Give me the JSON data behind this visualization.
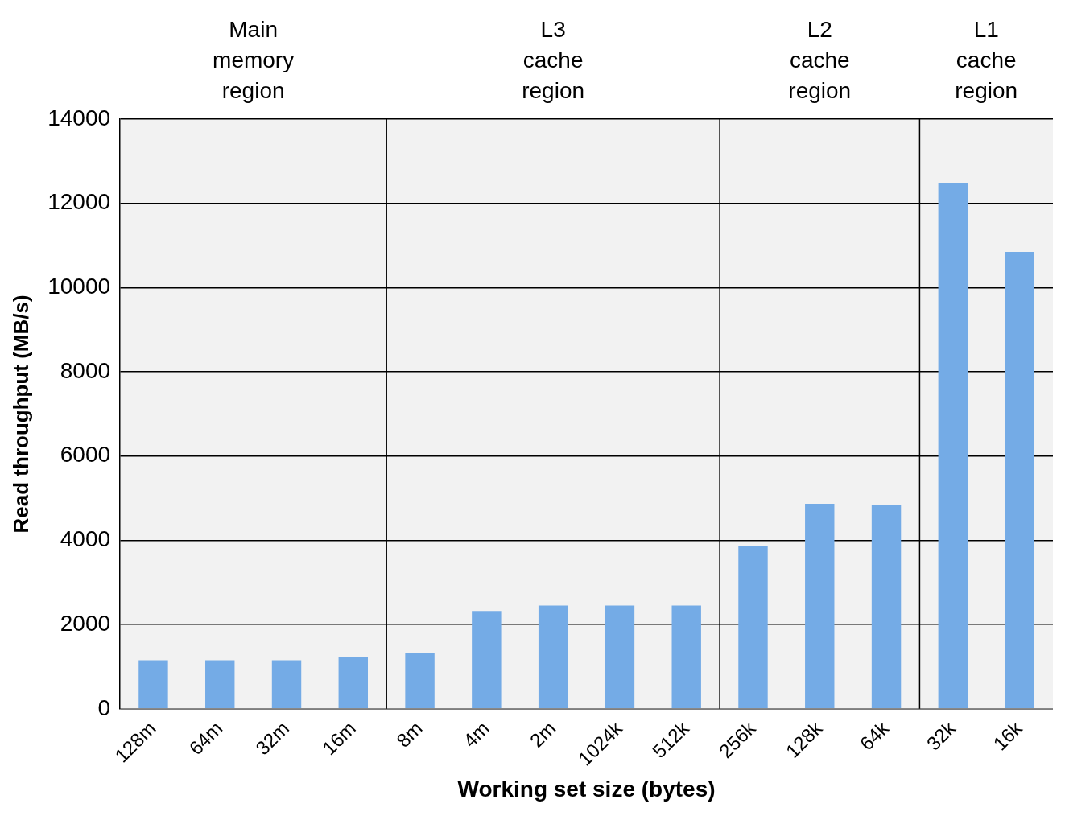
{
  "chart_data": {
    "type": "bar",
    "xlabel": "Working set size (bytes)",
    "ylabel": "Read throughput (MB/s)",
    "categories": [
      "128m",
      "64m",
      "32m",
      "16m",
      "8m",
      "4m",
      "2m",
      "1024k",
      "512k",
      "256k",
      "128k",
      "64k",
      "32k",
      "16k"
    ],
    "values": [
      1150,
      1150,
      1150,
      1220,
      1320,
      2320,
      2450,
      2450,
      2450,
      3870,
      4870,
      4830,
      12480,
      10850
    ],
    "color": "#74abe6",
    "ylim": [
      0,
      14000
    ],
    "yticks": [
      0,
      2000,
      4000,
      6000,
      8000,
      10000,
      12000,
      14000
    ],
    "grid": "y",
    "legend": false,
    "bands": [
      {
        "axis": "x",
        "from": "128m",
        "to": "16m",
        "label": "Main memory region",
        "color": "#f2f2f2"
      },
      {
        "axis": "x",
        "from": "8m",
        "to": "512k",
        "label": "L3 cache region",
        "color": "#f2f2f2"
      },
      {
        "axis": "x",
        "from": "256k",
        "to": "64k",
        "label": "L2 cache region",
        "color": "#f2f2f2"
      },
      {
        "axis": "x",
        "from": "32k",
        "to": "16k",
        "label": "L1 cache region",
        "color": "#f2f2f2"
      }
    ]
  }
}
